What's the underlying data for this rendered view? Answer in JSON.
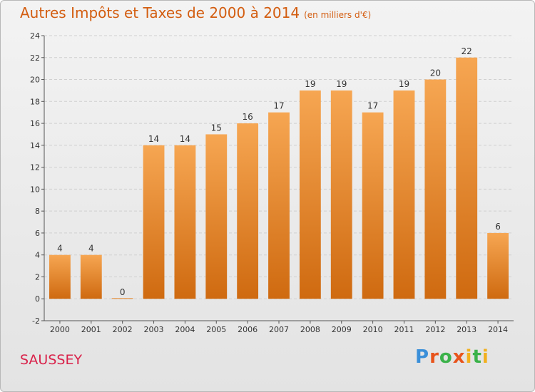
{
  "title": "Autres Impôts et Taxes de 2000 à 2014",
  "subtitle": "(en milliers d'€)",
  "place": "SAUSSEY",
  "logo": {
    "letters": [
      "P",
      "r",
      "o",
      "x",
      "i",
      "t",
      "i"
    ],
    "colors": [
      "#3a8fd9",
      "#e8541c",
      "#3bb24a",
      "#e8541c",
      "#f2b01e",
      "#3bb24a",
      "#f2b01e"
    ]
  },
  "colors": {
    "bar": "#f28c28",
    "bar_dark": "#cf6a10",
    "title": "#d35d10",
    "place": "#d9224a"
  },
  "chart_data": {
    "type": "bar",
    "categories": [
      "2000",
      "2001",
      "2002",
      "2003",
      "2004",
      "2005",
      "2006",
      "2007",
      "2008",
      "2009",
      "2010",
      "2011",
      "2012",
      "2013",
      "2014"
    ],
    "values": [
      4,
      4,
      0,
      14,
      14,
      15,
      16,
      17,
      19,
      19,
      17,
      19,
      20,
      22,
      6
    ],
    "value_labels": [
      "4",
      "4",
      "0",
      "14",
      "14",
      "15",
      "16",
      "17",
      "19",
      "19",
      "17",
      "19",
      "20",
      "22",
      "6"
    ],
    "ylim": [
      -2,
      24
    ],
    "yticks": [
      -2,
      0,
      2,
      4,
      6,
      8,
      10,
      12,
      14,
      16,
      18,
      20,
      22,
      24
    ],
    "ytick_labels": [
      "-2",
      "0",
      "2",
      "4",
      "6",
      "8",
      "10",
      "12",
      "14",
      "16",
      "18",
      "20",
      "22",
      "24"
    ],
    "grid": true
  }
}
